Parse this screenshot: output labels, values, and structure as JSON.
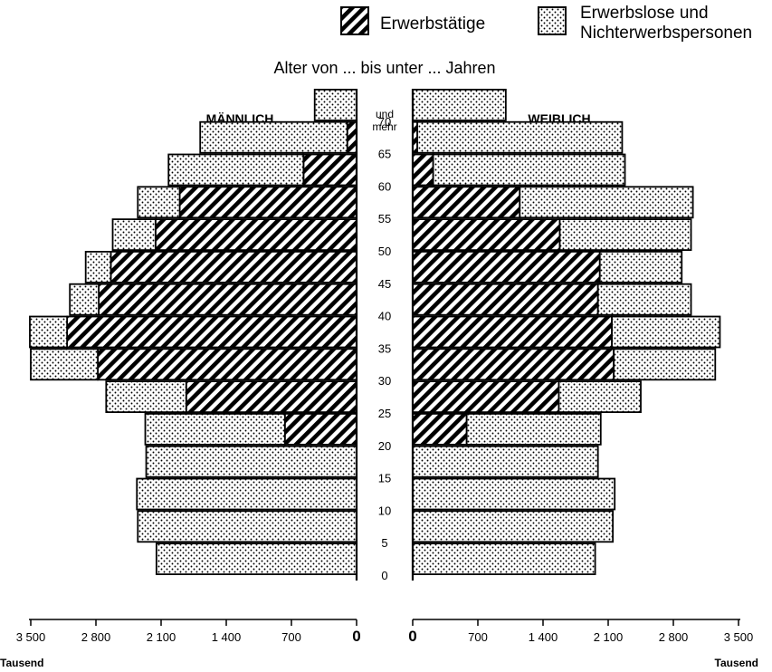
{
  "legend": {
    "employed_label": "Erwerbstätige",
    "other_label_line1": "Erwerbslose und",
    "other_label_line2": "Nichterwerbspersonen",
    "placement": "top-right"
  },
  "colors": {
    "ink": "#000000",
    "background": "#ffffff"
  },
  "chart_data": {
    "type": "bar",
    "title": "Alter von ... bis unter ... Jahren",
    "orientation": "horizontal-population-pyramid",
    "left_panel_label": "MÄNNLICH",
    "right_panel_label": "WEIBLICH",
    "unit_label": "Tausend",
    "top_group_label_line1": "und",
    "top_group_label_line2": "mehr",
    "age_labels": [
      "0",
      "5",
      "10",
      "15",
      "20",
      "25",
      "30",
      "35",
      "40",
      "45",
      "50",
      "55",
      "60",
      "65",
      "70"
    ],
    "x_ticks": [
      3500,
      2800,
      2100,
      1400,
      700,
      0
    ],
    "x_tick_labels": [
      "3 500",
      "2 800",
      "2 100",
      "1 400",
      "700",
      "0"
    ],
    "xlim": [
      0,
      3500
    ],
    "series": [
      {
        "name": "Erwerbstätige",
        "male": [
          0,
          0,
          0,
          0,
          770,
          1830,
          2780,
          3110,
          2770,
          2640,
          2160,
          1900,
          570,
          100,
          0
        ],
        "female": [
          0,
          0,
          0,
          0,
          580,
          1570,
          2160,
          2140,
          1990,
          2010,
          1580,
          1150,
          220,
          50,
          0
        ]
      },
      {
        "name": "Erwerbslose und Nichterwerbspersonen",
        "male": [
          2150,
          2350,
          2360,
          2260,
          1500,
          860,
          720,
          400,
          310,
          270,
          460,
          450,
          1450,
          1580,
          450
        ],
        "female": [
          1960,
          2150,
          2170,
          1990,
          1440,
          880,
          1090,
          1160,
          1000,
          880,
          1410,
          1860,
          2060,
          2200,
          1000
        ]
      }
    ]
  }
}
